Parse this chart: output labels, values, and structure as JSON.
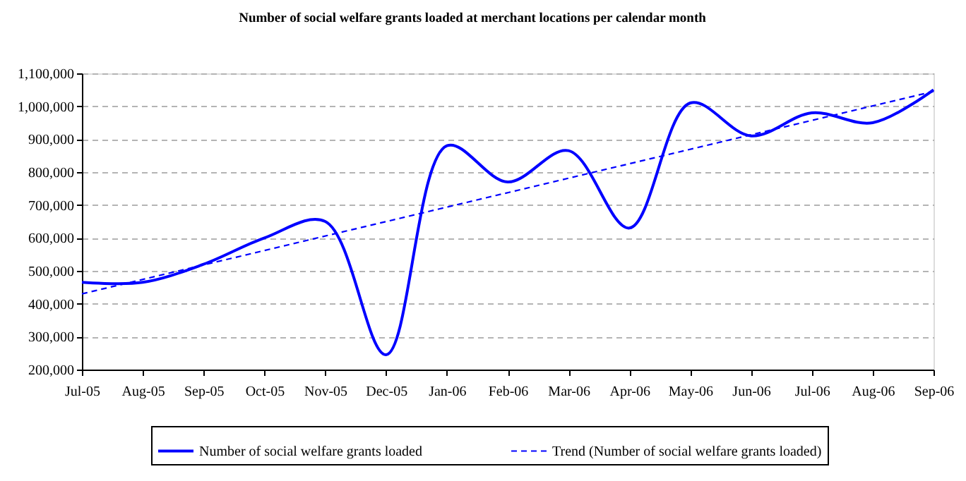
{
  "chart_data": {
    "type": "line",
    "title": "Number of social welfare grants loaded at merchant locations per calendar month",
    "categories": [
      "Jul-05",
      "Aug-05",
      "Sep-05",
      "Oct-05",
      "Nov-05",
      "Dec-05",
      "Jan-06",
      "Feb-06",
      "Mar-06",
      "Apr-06",
      "May-06",
      "Jun-06",
      "Jul-06",
      "Aug-06",
      "Sep-06"
    ],
    "ylim": [
      200000,
      1100000
    ],
    "yticks": [
      {
        "value": 200000,
        "label": "200,000"
      },
      {
        "value": 300000,
        "label": "300,000"
      },
      {
        "value": 400000,
        "label": "400,000"
      },
      {
        "value": 500000,
        "label": "500,000"
      },
      {
        "value": 600000,
        "label": "600,000"
      },
      {
        "value": 700000,
        "label": "700,000"
      },
      {
        "value": 800000,
        "label": "800,000"
      },
      {
        "value": 900000,
        "label": "900,000"
      },
      {
        "value": 1000000,
        "label": "1,000,000"
      },
      {
        "value": 1100000,
        "label": "1,100,000"
      }
    ],
    "grid": "y",
    "legend": "bottom",
    "series": [
      {
        "name": "Number of social welfare grants loaded",
        "color": "#0000ff",
        "line_style": "solid",
        "values": [
          465000,
          465000,
          520000,
          600000,
          650000,
          245000,
          880000,
          770000,
          865000,
          630000,
          1010000,
          910000,
          980000,
          950000,
          1050000
        ]
      },
      {
        "name": "Trend (Number of social welfare grants loaded)",
        "type": "line",
        "color": "#0000ff",
        "line_style": "dashed",
        "x": [
          "Jul-05",
          "Sep-06"
        ],
        "values": [
          430000,
          1045000
        ]
      }
    ]
  }
}
